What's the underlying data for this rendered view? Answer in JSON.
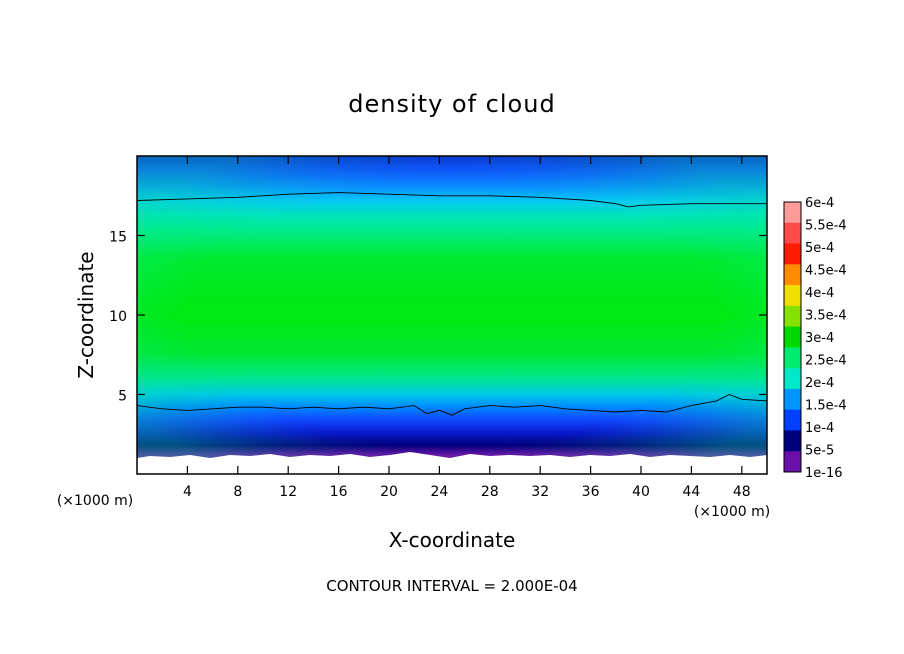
{
  "chart_data": {
    "type": "heatmap",
    "title": "density of cloud",
    "xlabel": "X-coordinate",
    "ylabel": "Z-coordinate",
    "x_unit_label": "(×1000 m)",
    "y_unit_label": "(×1000 m)",
    "xlim": [
      0,
      50
    ],
    "ylim": [
      0,
      20
    ],
    "x_ticks": [
      4,
      8,
      12,
      16,
      20,
      24,
      28,
      32,
      36,
      40,
      44,
      48
    ],
    "x_tick_labels": [
      "4",
      "8",
      "12",
      "16",
      "20",
      "24",
      "28",
      "32",
      "36",
      "40",
      "44",
      "48"
    ],
    "y_ticks": [
      5,
      10,
      15
    ],
    "y_tick_labels": [
      "5",
      "10",
      "15"
    ],
    "colorbar": {
      "placement": "right",
      "labels": [
        "6e-4",
        "5.5e-4",
        "5e-4",
        "4.5e-4",
        "4e-4",
        "3.5e-4",
        "3e-4",
        "2.5e-4",
        "2e-4",
        "1.5e-4",
        "1e-4",
        "5e-5",
        "1e-16"
      ],
      "colors": [
        "#ff9a9a",
        "#ff4a4a",
        "#ff1c00",
        "#ff8c00",
        "#f0e000",
        "#86e000",
        "#00d800",
        "#00ea70",
        "#00e8c8",
        "#0096ff",
        "#0040ff",
        "#00007a",
        "#6a10a8"
      ]
    },
    "contour_interval_text": "CONTOUR INTERVAL = 2.000E-04",
    "contour_level": 0.0002,
    "contour_upper_z": [
      [
        0,
        17.2
      ],
      [
        4,
        17.3
      ],
      [
        8,
        17.4
      ],
      [
        12,
        17.6
      ],
      [
        16,
        17.7
      ],
      [
        20,
        17.6
      ],
      [
        24,
        17.5
      ],
      [
        28,
        17.5
      ],
      [
        32,
        17.4
      ],
      [
        36,
        17.2
      ],
      [
        38,
        17.0
      ],
      [
        39,
        16.8
      ],
      [
        40,
        16.9
      ],
      [
        44,
        17.0
      ],
      [
        48,
        17.0
      ],
      [
        50,
        17.0
      ]
    ],
    "contour_lower_z": [
      [
        0,
        4.3
      ],
      [
        2,
        4.1
      ],
      [
        4,
        4.0
      ],
      [
        6,
        4.1
      ],
      [
        8,
        4.2
      ],
      [
        10,
        4.2
      ],
      [
        12,
        4.1
      ],
      [
        14,
        4.2
      ],
      [
        16,
        4.1
      ],
      [
        18,
        4.2
      ],
      [
        20,
        4.1
      ],
      [
        22,
        4.3
      ],
      [
        23,
        3.8
      ],
      [
        24,
        4.0
      ],
      [
        25,
        3.7
      ],
      [
        26,
        4.1
      ],
      [
        28,
        4.3
      ],
      [
        30,
        4.2
      ],
      [
        32,
        4.3
      ],
      [
        34,
        4.1
      ],
      [
        36,
        4.0
      ],
      [
        38,
        3.9
      ],
      [
        40,
        4.0
      ],
      [
        42,
        3.9
      ],
      [
        44,
        4.3
      ],
      [
        46,
        4.6
      ],
      [
        47,
        5.0
      ],
      [
        48,
        4.7
      ],
      [
        50,
        4.6
      ]
    ],
    "grid": false
  }
}
